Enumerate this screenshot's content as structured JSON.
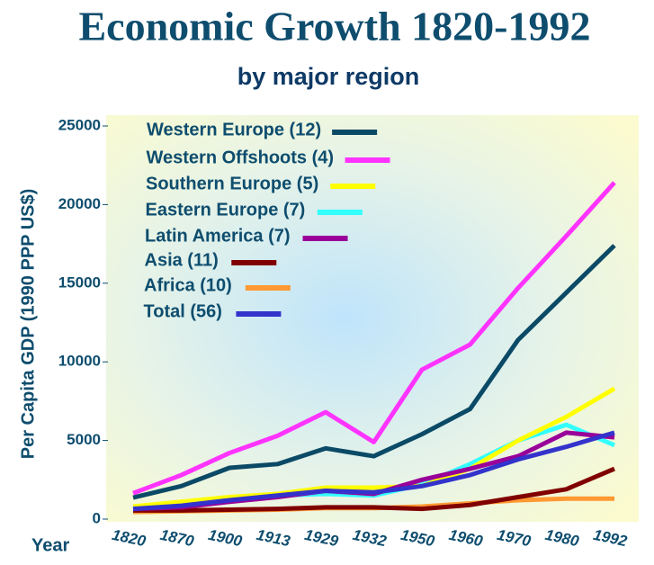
{
  "chart_data": {
    "type": "line",
    "title": "Economic Growth 1820-1992",
    "subtitle": "by major region",
    "y_label": "Per Capita GDP (1990 PPP US$)",
    "x_label": "Year",
    "categories": [
      "1820",
      "1870",
      "1900",
      "1913",
      "1929",
      "1932",
      "1950",
      "1960",
      "1970",
      "1980",
      "1992"
    ],
    "ylim": [
      0,
      25000
    ],
    "yticks": [
      0,
      5000,
      10000,
      15000,
      20000,
      25000
    ],
    "series": [
      {
        "name": "Western Europe (12)",
        "color": "#0b4a66",
        "values": [
          1370,
          2100,
          3260,
          3500,
          4500,
          4000,
          5400,
          7000,
          11400,
          14400,
          17400
        ]
      },
      {
        "name": "Western Offshoots (4)",
        "color": "#ff33ff",
        "values": [
          1650,
          2800,
          4200,
          5300,
          6800,
          4900,
          9500,
          11100,
          14700,
          18000,
          21400
        ]
      },
      {
        "name": "Southern Europe (5)",
        "color": "#ffff00",
        "values": [
          800,
          1100,
          1400,
          1600,
          2000,
          2000,
          2100,
          3200,
          5000,
          6500,
          8300
        ]
      },
      {
        "name": "Eastern Europe (7)",
        "color": "#33ffff",
        "values": [
          700,
          950,
          1200,
          1500,
          1600,
          1500,
          2200,
          3500,
          5000,
          6000,
          4700
        ]
      },
      {
        "name": "Latin America (7)",
        "color": "#990099",
        "values": [
          650,
          750,
          1100,
          1400,
          1800,
          1600,
          2500,
          3200,
          4000,
          5500,
          5200
        ]
      },
      {
        "name": "Asia (11)",
        "color": "#800000",
        "values": [
          550,
          550,
          600,
          650,
          750,
          750,
          650,
          900,
          1400,
          1900,
          3200
        ]
      },
      {
        "name": "Africa (10)",
        "color": "#ff9933",
        "values": [
          450,
          500,
          550,
          600,
          700,
          700,
          800,
          1000,
          1200,
          1300,
          1300
        ]
      },
      {
        "name": "Total (56)",
        "color": "#3333cc",
        "values": [
          650,
          850,
          1200,
          1500,
          1800,
          1700,
          2100,
          2800,
          3800,
          4600,
          5500
        ]
      }
    ]
  }
}
